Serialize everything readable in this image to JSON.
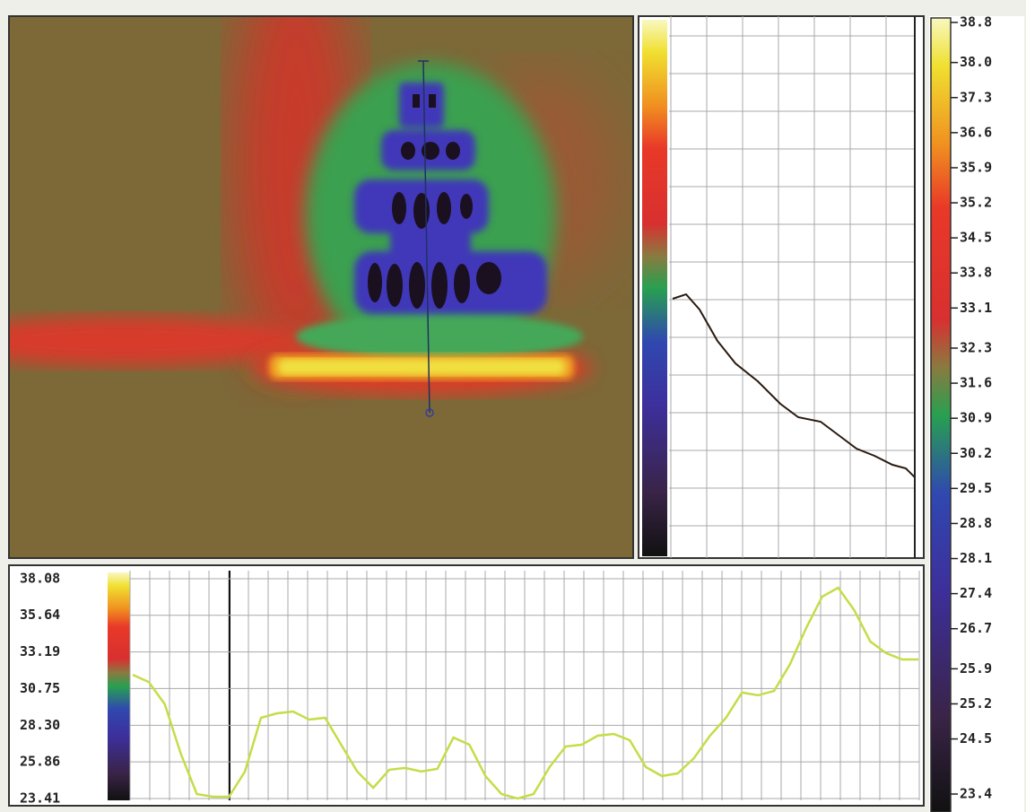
{
  "bottom_profile": {
    "ylim": [
      23.41,
      38.08
    ],
    "yticks": [
      38.08,
      35.64,
      33.19,
      30.75,
      {
        "value": 28.3,
        "label": "28.30"
      },
      25.86,
      23.41
    ],
    "color": "#c6dc48",
    "values": [
      31.67,
      31.19,
      29.7,
      26.4,
      23.71,
      23.53,
      23.53,
      25.21,
      28.8,
      29.1,
      29.22,
      28.68,
      28.8,
      27.0,
      25.21,
      24.13,
      25.33,
      25.45,
      25.21,
      25.39,
      27.48,
      27.0,
      24.91,
      23.71,
      23.41,
      23.71,
      25.51,
      26.88,
      27.0,
      27.6,
      27.72,
      27.3,
      25.51,
      24.91,
      25.09,
      26.1,
      27.6,
      28.8,
      30.48,
      30.3,
      30.59,
      32.39,
      34.79,
      36.88,
      37.48,
      35.98,
      33.89,
      33.11,
      32.69,
      32.69
    ]
  },
  "scale": {
    "range": [
      23.4,
      38.8
    ],
    "ticks": [
      38.8,
      {
        "value": 38,
        "label": "38.0"
      },
      37.3,
      36.6,
      35.9,
      35.2,
      34.5,
      33.8,
      33.1,
      32.3,
      31.6,
      30.9,
      30.2,
      29.5,
      28.8,
      28.1,
      27.4,
      26.7,
      25.9,
      25.2,
      24.5,
      23.4
    ]
  }
}
